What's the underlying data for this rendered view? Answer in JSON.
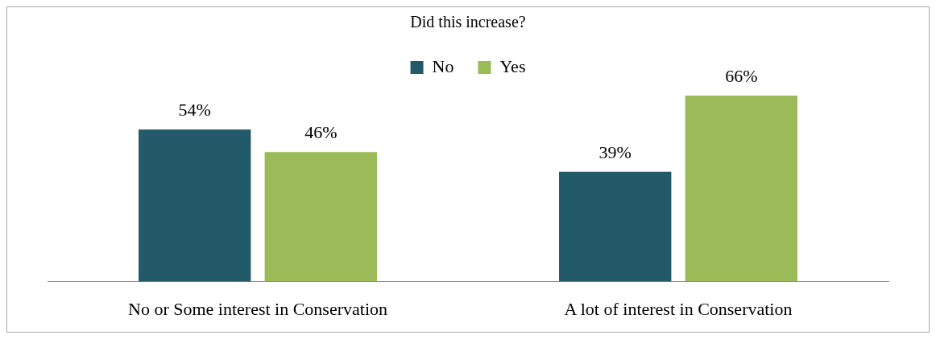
{
  "chart_data": {
    "type": "bar",
    "legend_title": "Did this increase?",
    "legend": "top",
    "grid": false,
    "categories": [
      "No or Some interest in Conservation",
      "A lot of interest in Conservation"
    ],
    "series": [
      {
        "name": "No",
        "color": "#235a69",
        "values": [
          54,
          39
        ],
        "value_labels": [
          "54%",
          "39%"
        ]
      },
      {
        "name": "Yes",
        "color": "#9bbb59",
        "values": [
          46,
          66
        ],
        "value_labels": [
          "46%",
          "66%"
        ]
      }
    ]
  }
}
